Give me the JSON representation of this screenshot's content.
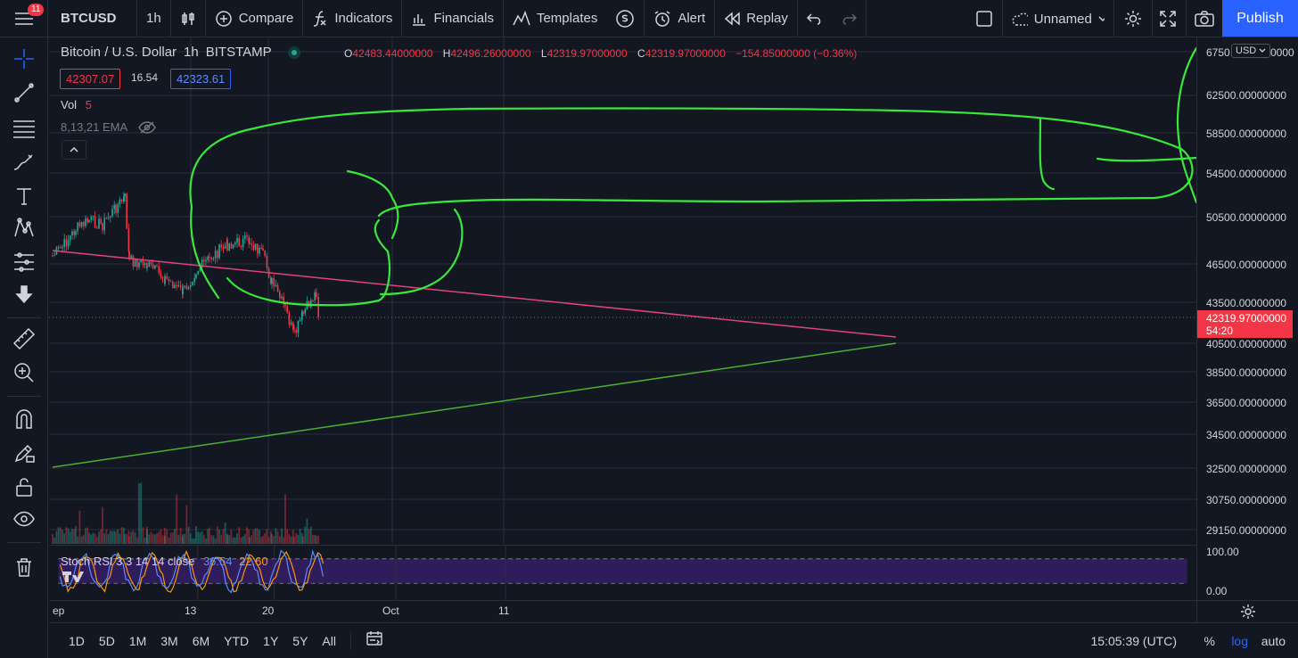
{
  "topbar": {
    "notification_count": "11",
    "symbol": "BTCUSD",
    "interval": "1h",
    "compare": "Compare",
    "indicators": "Indicators",
    "financials": "Financials",
    "templates": "Templates",
    "alert": "Alert",
    "replay": "Replay",
    "layout_name": "Unnamed",
    "publish": "Publish"
  },
  "legend": {
    "title": "Bitcoin / U.S. Dollar",
    "interval": "1h",
    "exchange": "BITSTAMP",
    "open_key": "O",
    "open": "42483.44000000",
    "high_key": "H",
    "high": "42496.26000000",
    "low_key": "L",
    "low": "42319.97000000",
    "close_key": "C",
    "close": "42319.97000000",
    "change": "−154.85000000 (−0.36%)",
    "bid": "42307.07",
    "spread": "16.54",
    "ask": "42323.61",
    "vol_label": "Vol",
    "vol_value": "5",
    "ema_label": "8,13,21 EMA"
  },
  "rsi": {
    "label": "Stoch RSI 3 3 14 14 close",
    "k": "36.54",
    "d": "22.60",
    "top": "100.00",
    "bottom": "0.00"
  },
  "price_axis": {
    "currency": "USD",
    "labels": [
      "6750",
      "0000",
      "62500.00000000",
      "58500.00000000",
      "54500.00000000",
      "50500.00000000",
      "46500.00000000",
      "43500.00000000",
      "40500.00000000",
      "38500.00000000",
      "36500.00000000",
      "34500.00000000",
      "32500.00000000",
      "30750.00000000",
      "29150.00000000"
    ],
    "last_price": "42319.97000000",
    "countdown": "54:20"
  },
  "time_axis": {
    "labels": [
      "ep",
      "13",
      "20",
      "Oct",
      "11"
    ]
  },
  "bottombar": {
    "ranges": [
      "1D",
      "5D",
      "1M",
      "3M",
      "6M",
      "YTD",
      "1Y",
      "5Y",
      "All"
    ],
    "clock": "15:05:39 (UTC)",
    "percent": "%",
    "log": "log",
    "auto": "auto"
  },
  "colors": {
    "background": "#131722",
    "up": "#26a69a",
    "down": "#f23645",
    "accent": "#2962ff",
    "drawing": "#39e83a",
    "trendline_pink": "#e0437a",
    "trendline_green": "#4caf2f"
  }
}
